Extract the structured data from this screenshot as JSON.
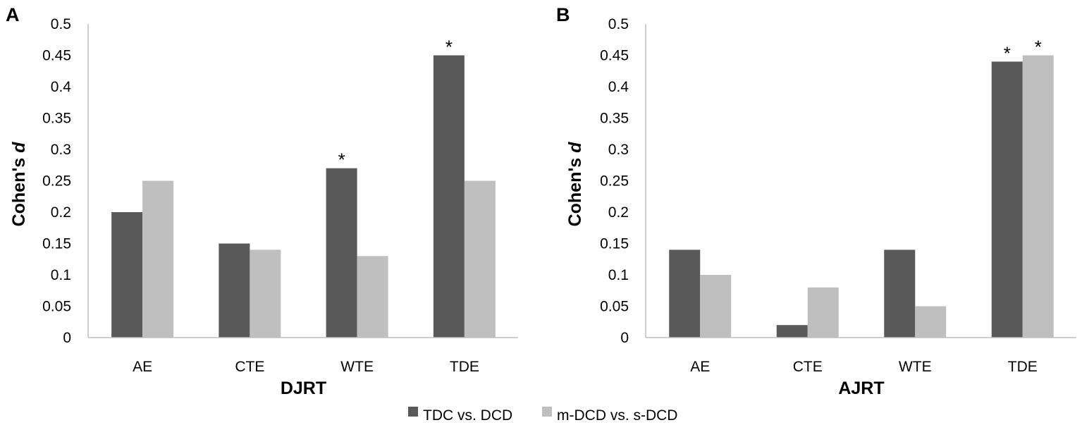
{
  "chart_data": [
    {
      "type": "bar",
      "panel_label": "A",
      "categories": [
        "AE",
        "CTE",
        "WTE",
        "TDE"
      ],
      "series": [
        {
          "name": "TDC vs. DCD",
          "values": [
            0.2,
            0.15,
            0.27,
            0.45
          ],
          "color": "#595959"
        },
        {
          "name": "m-DCD vs. s-DCD",
          "values": [
            0.25,
            0.14,
            0.13,
            0.25
          ],
          "color": "#bfbfbf"
        }
      ],
      "annotations": [
        {
          "category": "WTE",
          "series": 0,
          "text": "*"
        },
        {
          "category": "TDE",
          "series": 0,
          "text": "*"
        }
      ],
      "xlabel": "DJRT",
      "ylabel_prefix": "Cohen's ",
      "ylabel_italic": "d",
      "ylim": [
        0,
        0.5
      ],
      "yticks": [
        "0",
        "0.05",
        "0.1",
        "0.15",
        "0.2",
        "0.25",
        "0.3",
        "0.35",
        "0.4",
        "0.45",
        "0.5"
      ],
      "grid": false
    },
    {
      "type": "bar",
      "panel_label": "B",
      "categories": [
        "AE",
        "CTE",
        "WTE",
        "TDE"
      ],
      "series": [
        {
          "name": "TDC vs. DCD",
          "values": [
            0.14,
            0.02,
            0.14,
            0.44
          ],
          "color": "#595959"
        },
        {
          "name": "m-DCD vs. s-DCD",
          "values": [
            0.1,
            0.08,
            0.05,
            0.45
          ],
          "color": "#bfbfbf"
        }
      ],
      "annotations": [
        {
          "category": "TDE",
          "series": 0,
          "text": "*"
        },
        {
          "category": "TDE",
          "series": 1,
          "text": "*"
        }
      ],
      "xlabel": "AJRT",
      "ylabel_prefix": "Cohen's ",
      "ylabel_italic": "d",
      "ylim": [
        0,
        0.5
      ],
      "yticks": [
        "0",
        "0.05",
        "0.1",
        "0.15",
        "0.2",
        "0.25",
        "0.3",
        "0.35",
        "0.4",
        "0.45",
        "0.5"
      ],
      "grid": false
    }
  ],
  "legend": {
    "position": "bottom-center",
    "items": [
      {
        "label": "TDC vs. DCD",
        "color": "#595959"
      },
      {
        "label": "m-DCD vs. s-DCD",
        "color": "#bfbfbf"
      }
    ]
  }
}
